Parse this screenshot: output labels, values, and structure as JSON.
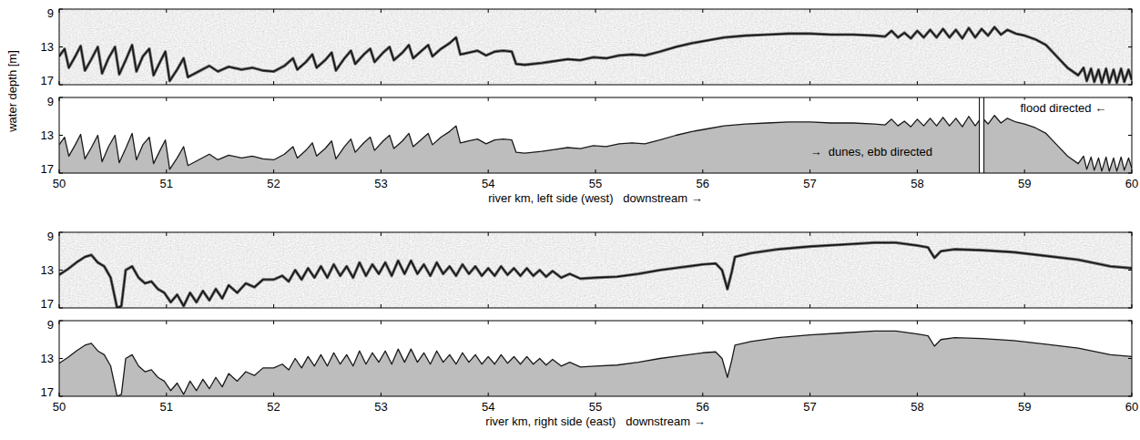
{
  "chart_data": [
    {
      "type": "echogram_profile",
      "ylabel": "water depth [m]",
      "xlabel": "river km, left side (west)   downstream →",
      "xlim": [
        50,
        60
      ],
      "xticks": [
        50,
        51,
        52,
        53,
        54,
        55,
        56,
        57,
        58,
        59,
        60
      ],
      "ylim": [
        17,
        9
      ],
      "yticks": [
        9,
        13,
        17
      ],
      "annotations": [
        {
          "text": "→  dunes, ebb directed",
          "x": 57.0,
          "y": 15.2
        },
        {
          "text": "flood directed ←",
          "x": 58.96,
          "y": 10.5
        }
      ],
      "vlines": [
        58.6
      ],
      "x": [
        50.0,
        50.05,
        50.09,
        50.15,
        50.2,
        50.24,
        50.3,
        50.36,
        50.4,
        50.46,
        50.52,
        50.56,
        50.62,
        50.68,
        50.72,
        50.78,
        50.84,
        50.88,
        50.94,
        50.99,
        51.03,
        51.1,
        51.16,
        51.2,
        51.3,
        51.4,
        51.48,
        51.58,
        51.7,
        51.8,
        51.9,
        52.0,
        52.1,
        52.18,
        52.22,
        52.3,
        52.36,
        52.4,
        52.48,
        52.54,
        52.58,
        52.66,
        52.72,
        52.76,
        52.84,
        52.9,
        52.94,
        53.02,
        53.08,
        53.12,
        53.2,
        53.26,
        53.3,
        53.38,
        53.44,
        53.48,
        53.56,
        53.64,
        53.7,
        53.74,
        53.82,
        53.9,
        53.98,
        54.06,
        54.14,
        54.22,
        54.26,
        54.34,
        54.5,
        54.62,
        54.74,
        54.86,
        54.98,
        55.1,
        55.22,
        55.34,
        55.46,
        55.6,
        55.75,
        55.9,
        56.05,
        56.2,
        56.4,
        56.6,
        56.8,
        57.0,
        57.2,
        57.4,
        57.6,
        57.7,
        57.76,
        57.82,
        57.88,
        57.94,
        58.0,
        58.06,
        58.12,
        58.18,
        58.24,
        58.3,
        58.36,
        58.42,
        58.48,
        58.54,
        58.6,
        58.66,
        58.72,
        58.78,
        58.84,
        58.92,
        59.0,
        59.1,
        59.2,
        59.3,
        59.4,
        59.5,
        59.55,
        59.58,
        59.62,
        59.65,
        59.69,
        59.72,
        59.76,
        59.79,
        59.83,
        59.86,
        59.9,
        59.93,
        59.97,
        60.0
      ],
      "values": [
        14.0,
        13.2,
        15.2,
        14.0,
        12.9,
        15.5,
        14.3,
        13.0,
        15.8,
        14.2,
        13.0,
        15.9,
        14.4,
        12.8,
        15.6,
        14.0,
        13.2,
        16.0,
        14.6,
        13.5,
        16.6,
        15.4,
        14.2,
        16.2,
        15.6,
        15.0,
        15.6,
        15.1,
        15.4,
        15.2,
        15.5,
        15.6,
        15.0,
        14.2,
        15.4,
        14.6,
        13.8,
        15.2,
        14.4,
        13.6,
        15.5,
        14.2,
        13.4,
        14.8,
        13.8,
        13.2,
        14.6,
        13.6,
        13.0,
        14.4,
        13.6,
        12.8,
        14.2,
        13.4,
        12.8,
        14.0,
        13.2,
        12.6,
        12.0,
        13.8,
        13.6,
        13.4,
        13.9,
        13.5,
        13.4,
        13.5,
        14.8,
        14.9,
        14.7,
        14.5,
        14.3,
        14.4,
        14.1,
        14.2,
        13.9,
        13.8,
        13.9,
        13.5,
        13.0,
        12.6,
        12.3,
        12.0,
        11.8,
        11.7,
        11.6,
        11.6,
        11.7,
        11.7,
        11.8,
        11.9,
        11.3,
        12.0,
        11.5,
        12.1,
        11.3,
        12.0,
        11.2,
        12.0,
        11.1,
        12.0,
        11.2,
        12.1,
        11.0,
        12.0,
        11.1,
        11.8,
        10.9,
        11.7,
        11.2,
        11.6,
        11.8,
        12.2,
        12.8,
        14.0,
        15.2,
        16.0,
        15.2,
        16.6,
        15.3,
        16.7,
        15.4,
        16.8,
        15.3,
        16.8,
        15.4,
        16.8,
        15.3,
        16.7,
        15.4,
        16.5
      ]
    },
    {
      "type": "echogram_profile",
      "xlabel": "river km, right side (east)   downstream →",
      "xlim": [
        50,
        60
      ],
      "xticks": [
        50,
        51,
        52,
        53,
        54,
        55,
        56,
        57,
        58,
        59,
        60
      ],
      "ylim": [
        17,
        9
      ],
      "yticks": [
        9,
        13,
        17
      ],
      "x": [
        50.0,
        50.08,
        50.16,
        50.24,
        50.3,
        50.36,
        50.42,
        50.48,
        50.54,
        50.58,
        50.62,
        50.68,
        50.74,
        50.8,
        50.86,
        50.92,
        50.98,
        51.04,
        51.1,
        51.16,
        51.22,
        51.28,
        51.34,
        51.4,
        51.46,
        51.52,
        51.58,
        51.66,
        51.74,
        51.82,
        51.9,
        52.0,
        52.08,
        52.14,
        52.2,
        52.26,
        52.32,
        52.38,
        52.44,
        52.5,
        52.56,
        52.62,
        52.68,
        52.74,
        52.8,
        52.86,
        52.92,
        52.98,
        53.04,
        53.1,
        53.16,
        53.22,
        53.28,
        53.34,
        53.4,
        53.46,
        53.52,
        53.58,
        53.64,
        53.7,
        53.76,
        53.82,
        53.88,
        53.94,
        54.0,
        54.06,
        54.12,
        54.18,
        54.24,
        54.3,
        54.36,
        54.42,
        54.48,
        54.54,
        54.6,
        54.68,
        54.76,
        54.86,
        55.0,
        55.2,
        55.4,
        55.6,
        55.8,
        56.0,
        56.12,
        56.18,
        56.23,
        56.27,
        56.3,
        56.45,
        56.7,
        57.0,
        57.3,
        57.6,
        57.8,
        58.0,
        58.1,
        58.16,
        58.22,
        58.35,
        58.6,
        58.9,
        59.2,
        59.5,
        59.8,
        60.0
      ],
      "values": [
        13.5,
        12.9,
        12.2,
        11.6,
        11.4,
        12.2,
        12.6,
        13.8,
        17.0,
        16.8,
        13.0,
        12.6,
        13.8,
        14.4,
        14.2,
        15.0,
        15.4,
        16.4,
        15.6,
        16.8,
        15.4,
        16.4,
        15.2,
        16.2,
        15.0,
        16.0,
        14.6,
        15.4,
        14.4,
        14.8,
        14.0,
        14.0,
        13.6,
        14.2,
        13.0,
        14.0,
        12.8,
        13.8,
        12.6,
        13.8,
        12.4,
        13.6,
        12.6,
        13.8,
        12.2,
        13.6,
        12.4,
        13.4,
        12.2,
        13.6,
        12.0,
        13.4,
        12.0,
        13.4,
        12.4,
        13.6,
        12.2,
        13.4,
        12.6,
        13.6,
        12.4,
        13.4,
        12.6,
        13.6,
        12.8,
        13.6,
        12.6,
        13.5,
        12.8,
        13.6,
        12.8,
        13.6,
        13.0,
        13.7,
        13.1,
        13.8,
        13.4,
        13.9,
        13.8,
        13.7,
        13.4,
        13.0,
        12.7,
        12.4,
        12.3,
        13.0,
        15.0,
        13.2,
        11.6,
        11.2,
        10.8,
        10.5,
        10.3,
        10.1,
        10.1,
        10.4,
        10.6,
        11.7,
        11.0,
        10.8,
        10.9,
        11.1,
        11.5,
        11.9,
        12.6,
        12.8
      ]
    }
  ]
}
